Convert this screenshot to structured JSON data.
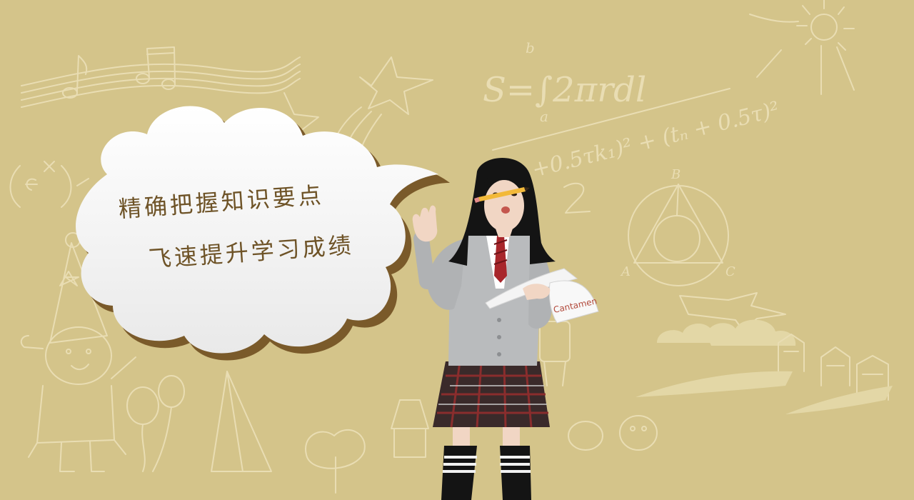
{
  "colors": {
    "background": "#d4c48a",
    "doodle": "#e9ddb3",
    "bubble_fill": "#fbfbfb",
    "bubble_shadow": "#7a5a2a",
    "bubble_text": "#6e5327",
    "cardigan": "#b9bbbd",
    "skirt": "#3a2a2a",
    "hair": "#141414",
    "skin": "#f1d6c4"
  },
  "speech_bubble": {
    "line_1": "精确把握知识要点",
    "line_2": "飞速提升学习成绩"
  },
  "doodles": {
    "formula_area": "S=∫2πrdl",
    "formula_limits": [
      "b",
      "a"
    ],
    "formula_long": "+0.5τk₁)² + (tₙ + 0.5τ)²",
    "formula_exp": "(eˣ)",
    "triangle_vertices": [
      "B",
      "A",
      "C"
    ]
  },
  "book": {
    "cover_text": "Cantamen"
  },
  "icons": [
    "music-notes-icon",
    "shooting-star-icon",
    "sun-icon",
    "triangle-circle-icon",
    "clouds-icon",
    "airplane-icon",
    "girl-drawing-icon",
    "balloon-icon",
    "building-icon"
  ]
}
